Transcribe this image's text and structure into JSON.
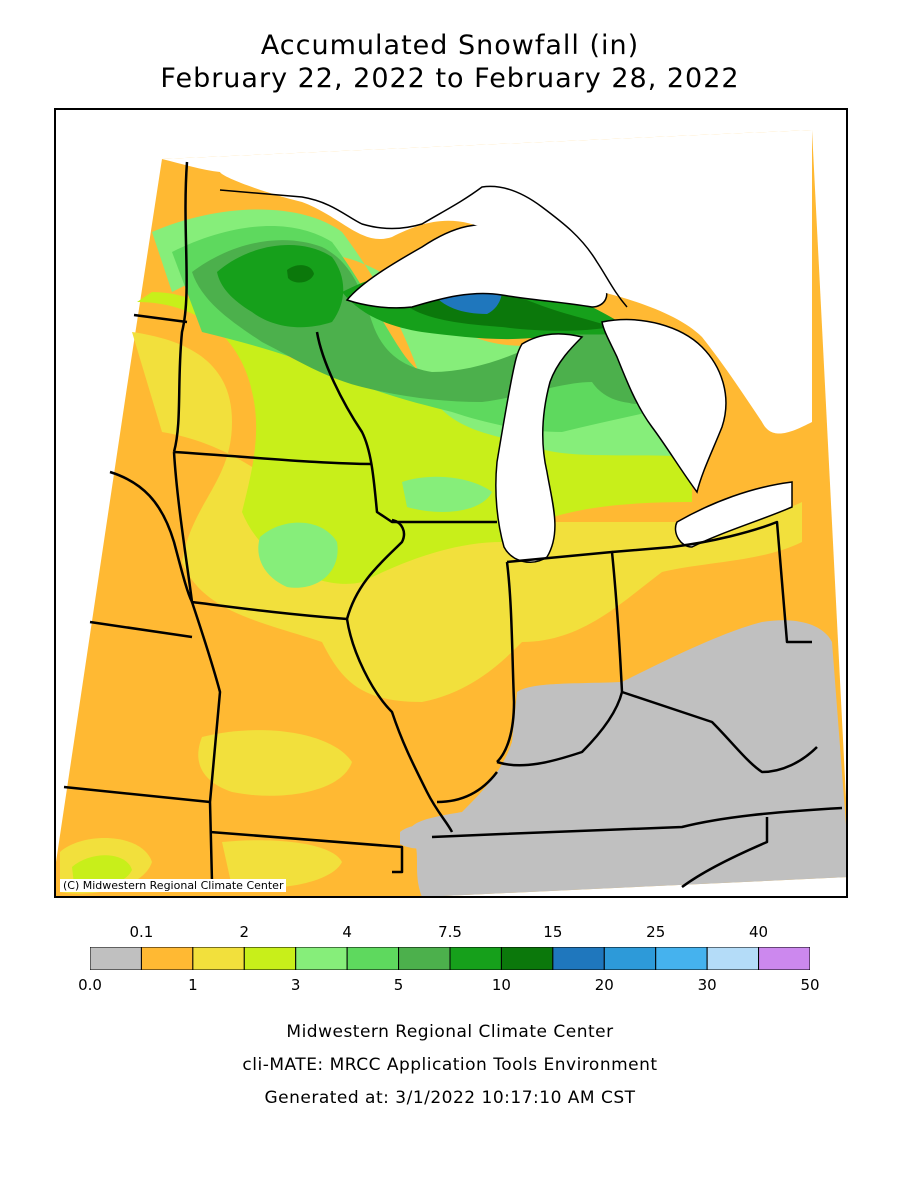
{
  "title_line1": "Accumulated Snowfall (in)",
  "title_line2": "February 22, 2022 to February 28, 2022",
  "copyright": "(C) Midwestern Regional Climate Center",
  "legend": {
    "bins": [
      {
        "color": "#c0c0c0"
      },
      {
        "color": "#ffb933"
      },
      {
        "color": "#f2e03c"
      },
      {
        "color": "#c8ef1a"
      },
      {
        "color": "#86ee7a"
      },
      {
        "color": "#5ed95e"
      },
      {
        "color": "#4cb04c"
      },
      {
        "color": "#16a01b"
      },
      {
        "color": "#0b780b"
      },
      {
        "color": "#1f77bd"
      },
      {
        "color": "#2d9ad9"
      },
      {
        "color": "#45b2ee"
      },
      {
        "color": "#b4dcf8"
      },
      {
        "color": "#cc88ee"
      }
    ],
    "top_labels": [
      "0.1",
      "2",
      "4",
      "7.5",
      "15",
      "25",
      "40"
    ],
    "bottom_labels": [
      "0.0",
      "1",
      "3",
      "5",
      "10",
      "20",
      "30",
      "50"
    ]
  },
  "footer": {
    "line1": "Midwestern Regional Climate Center",
    "line2": "cli-MATE: MRCC Application Tools Environment",
    "line3": "Generated at: 3/1/2022 10:17:10 AM CST"
  },
  "colors": {
    "none": "#c0c0c0",
    "trace_1": "#ffb933",
    "one_2": "#f2e03c",
    "two_3": "#c8ef1a",
    "three_4": "#86ee7a",
    "four_5": "#5ed95e",
    "five_75": "#4cb04c",
    "seven5_10": "#16a01b",
    "ten_15": "#0b780b",
    "fifteen_20": "#1f77bd"
  }
}
